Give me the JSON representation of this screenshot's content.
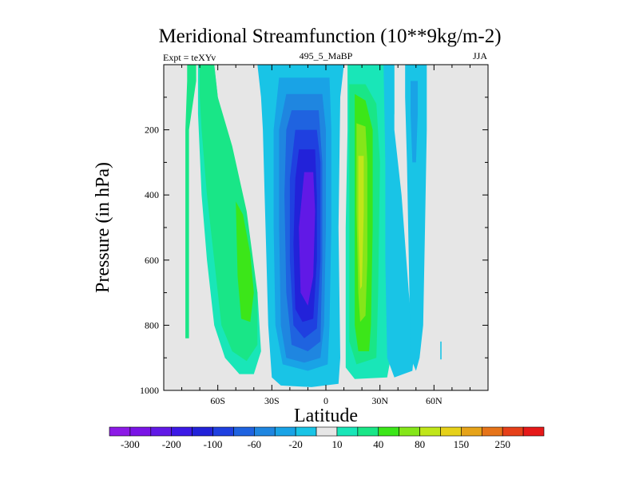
{
  "chart_data": {
    "type": "heatmap",
    "title": "Meridional Streamfunction (10**9kg/m-2)",
    "left_string": "Expt = teXYv",
    "center_string": "495_5_MaBP",
    "right_string": "JJA",
    "xlabel": "Latitude",
    "ylabel": "Pressure (in hPa)",
    "xlim": [
      -90,
      90
    ],
    "ylim": [
      1000,
      0
    ],
    "x_ticks": [
      -60,
      -30,
      0,
      30,
      60
    ],
    "x_tick_labels": [
      "60S",
      "30S",
      "0",
      "30N",
      "60N"
    ],
    "y_ticks": [
      200,
      400,
      600,
      800,
      1000
    ],
    "y_tick_labels": [
      "200",
      "400",
      "600",
      "800",
      "1000"
    ],
    "background_color": "#e6e6e6",
    "colorbar": {
      "levels": [
        -300,
        -250,
        -200,
        -150,
        -100,
        -80,
        -60,
        -40,
        -20,
        -10,
        10,
        20,
        40,
        60,
        80,
        100,
        150,
        200,
        250,
        300
      ],
      "labels": [
        "-300",
        "-200",
        "-100",
        "-60",
        "-20",
        "10",
        "40",
        "80",
        "150",
        "250"
      ],
      "label_levels": [
        -300,
        -200,
        -100,
        -60,
        -20,
        10,
        40,
        80,
        150,
        250
      ],
      "colors": [
        "#8c1ae6",
        "#7a14e6",
        "#6119e6",
        "#3c19e6",
        "#2222d9",
        "#1f40e0",
        "#1f63e0",
        "#1f86e0",
        "#19a3e6",
        "#19c4e6",
        "#e6e6e6",
        "#19e6b8",
        "#19e687",
        "#3ce619",
        "#85e619",
        "#c0e619",
        "#e6d119",
        "#e6a319",
        "#e67419",
        "#e64019",
        "#e61919"
      ]
    },
    "regions": [
      {
        "color_index": 12,
        "points": [
          [
            -77,
            0
          ],
          [
            -72,
            0
          ],
          [
            -72,
            50
          ],
          [
            -76,
            200
          ],
          [
            -76,
            840
          ],
          [
            -78,
            840
          ],
          [
            -78,
            200
          ],
          [
            -77,
            50
          ]
        ]
      },
      {
        "color_index": 11,
        "points": [
          [
            -71,
            0
          ],
          [
            -62,
            0
          ],
          [
            -60,
            100
          ],
          [
            -56,
            200
          ],
          [
            -50,
            350
          ],
          [
            -44,
            500
          ],
          [
            -38,
            700
          ],
          [
            -36,
            880
          ],
          [
            -40,
            950
          ],
          [
            -48,
            950
          ],
          [
            -56,
            900
          ],
          [
            -62,
            800
          ],
          [
            -66,
            600
          ],
          [
            -69,
            400
          ],
          [
            -71,
            150
          ]
        ]
      },
      {
        "color_index": 12,
        "points": [
          [
            -70,
            0
          ],
          [
            -62,
            0
          ],
          [
            -60,
            100
          ],
          [
            -52,
            250
          ],
          [
            -44,
            450
          ],
          [
            -38,
            700
          ],
          [
            -38,
            860
          ],
          [
            -44,
            910
          ],
          [
            -52,
            880
          ],
          [
            -58,
            800
          ],
          [
            -62,
            600
          ],
          [
            -66,
            400
          ],
          [
            -69,
            200
          ],
          [
            -70,
            100
          ]
        ]
      },
      {
        "color_index": 13,
        "points": [
          [
            -50,
            420
          ],
          [
            -46,
            460
          ],
          [
            -42,
            580
          ],
          [
            -40,
            700
          ],
          [
            -42,
            790
          ],
          [
            -47,
            780
          ],
          [
            -49,
            650
          ]
        ]
      },
      {
        "color_index": 9,
        "points": [
          [
            -33,
            0
          ],
          [
            10,
            0
          ],
          [
            8,
            100
          ],
          [
            7,
            500
          ],
          [
            8,
            900
          ],
          [
            7,
            980
          ],
          [
            -8,
            990
          ],
          [
            -25,
            985
          ],
          [
            -30,
            960
          ],
          [
            -32,
            800
          ],
          [
            -33,
            600
          ],
          [
            -34,
            400
          ],
          [
            -35,
            200
          ],
          [
            -36,
            100
          ],
          [
            -38,
            0
          ]
        ]
      },
      {
        "color_index": 8,
        "points": [
          [
            -26,
            40
          ],
          [
            2,
            40
          ],
          [
            3,
            200
          ],
          [
            3,
            500
          ],
          [
            2,
            800
          ],
          [
            1,
            920
          ],
          [
            -10,
            940
          ],
          [
            -24,
            920
          ],
          [
            -28,
            800
          ],
          [
            -29,
            500
          ],
          [
            -29,
            200
          ]
        ]
      },
      {
        "color_index": 7,
        "points": [
          [
            -22,
            90
          ],
          [
            -2,
            90
          ],
          [
            0,
            200
          ],
          [
            0,
            500
          ],
          [
            -1,
            800
          ],
          [
            -3,
            900
          ],
          [
            -12,
            915
          ],
          [
            -22,
            900
          ],
          [
            -25,
            800
          ],
          [
            -26,
            500
          ],
          [
            -26,
            200
          ]
        ]
      },
      {
        "color_index": 6,
        "points": [
          [
            -19,
            140
          ],
          [
            -4,
            140
          ],
          [
            -2,
            300
          ],
          [
            -2,
            600
          ],
          [
            -3,
            850
          ],
          [
            -10,
            880
          ],
          [
            -19,
            860
          ],
          [
            -22,
            700
          ],
          [
            -23,
            400
          ],
          [
            -22,
            200
          ]
        ]
      },
      {
        "color_index": 5,
        "points": [
          [
            -17,
            200
          ],
          [
            -5,
            200
          ],
          [
            -3,
            300
          ],
          [
            -3,
            600
          ],
          [
            -5,
            810
          ],
          [
            -12,
            840
          ],
          [
            -18,
            800
          ],
          [
            -20,
            600
          ],
          [
            -20,
            350
          ]
        ]
      },
      {
        "color_index": 4,
        "points": [
          [
            -15,
            260
          ],
          [
            -6,
            260
          ],
          [
            -5,
            400
          ],
          [
            -5,
            600
          ],
          [
            -7,
            780
          ],
          [
            -13,
            790
          ],
          [
            -17,
            750
          ],
          [
            -18,
            550
          ],
          [
            -17,
            350
          ]
        ]
      },
      {
        "color_index": 2,
        "points": [
          [
            -12,
            330
          ],
          [
            -7,
            330
          ],
          [
            -6,
            450
          ],
          [
            -7,
            650
          ],
          [
            -10,
            740
          ],
          [
            -14,
            700
          ],
          [
            -15,
            500
          ]
        ]
      },
      {
        "color_index": 11,
        "points": [
          [
            12,
            0
          ],
          [
            38,
            0
          ],
          [
            38,
            150
          ],
          [
            36,
            250
          ],
          [
            36,
            900
          ],
          [
            34,
            960
          ],
          [
            16,
            965
          ],
          [
            11,
            930
          ],
          [
            11,
            500
          ],
          [
            12,
            200
          ]
        ]
      },
      {
        "color_index": 12,
        "points": [
          [
            13,
            60
          ],
          [
            22,
            60
          ],
          [
            28,
            120
          ],
          [
            30,
            300
          ],
          [
            29,
            700
          ],
          [
            28,
            900
          ],
          [
            17,
            920
          ],
          [
            13,
            850
          ],
          [
            13,
            400
          ]
        ]
      },
      {
        "color_index": 13,
        "points": [
          [
            16,
            90
          ],
          [
            22,
            110
          ],
          [
            26,
            200
          ],
          [
            26,
            500
          ],
          [
            25,
            800
          ],
          [
            24,
            880
          ],
          [
            18,
            880
          ],
          [
            16,
            800
          ],
          [
            16,
            400
          ],
          [
            16,
            200
          ]
        ]
      },
      {
        "color_index": 14,
        "points": [
          [
            17,
            180
          ],
          [
            22,
            190
          ],
          [
            23,
            300
          ],
          [
            23,
            600
          ],
          [
            22,
            770
          ],
          [
            19,
            790
          ],
          [
            18,
            700
          ],
          [
            17,
            450
          ]
        ]
      },
      {
        "color_index": 15,
        "points": [
          [
            18,
            280
          ],
          [
            21,
            280
          ],
          [
            21,
            450
          ],
          [
            20,
            680
          ],
          [
            19,
            690
          ],
          [
            18,
            500
          ]
        ]
      },
      {
        "color_index": 9,
        "points": [
          [
            32,
            0
          ],
          [
            38,
            0
          ],
          [
            38,
            200
          ],
          [
            42,
            400
          ],
          [
            46,
            700
          ],
          [
            49,
            880
          ],
          [
            48,
            940
          ],
          [
            38,
            960
          ],
          [
            34,
            900
          ],
          [
            33,
            600
          ],
          [
            33,
            300
          ]
        ]
      },
      {
        "color_index": 9,
        "points": [
          [
            44,
            0
          ],
          [
            56,
            0
          ],
          [
            56,
            200
          ],
          [
            55,
            500
          ],
          [
            54,
            800
          ],
          [
            52,
            900
          ],
          [
            50,
            940
          ],
          [
            47,
            900
          ],
          [
            46,
            600
          ],
          [
            45,
            300
          ],
          [
            44,
            100
          ]
        ]
      },
      {
        "color_index": 8,
        "points": [
          [
            47,
            50
          ],
          [
            51,
            50
          ],
          [
            51,
            150
          ],
          [
            50,
            300
          ],
          [
            48,
            300
          ],
          [
            47,
            150
          ]
        ]
      },
      {
        "color_index": 9,
        "points": [
          [
            63.5,
            850
          ],
          [
            64.2,
            850
          ],
          [
            64.2,
            905
          ],
          [
            63.5,
            905
          ]
        ]
      }
    ]
  }
}
